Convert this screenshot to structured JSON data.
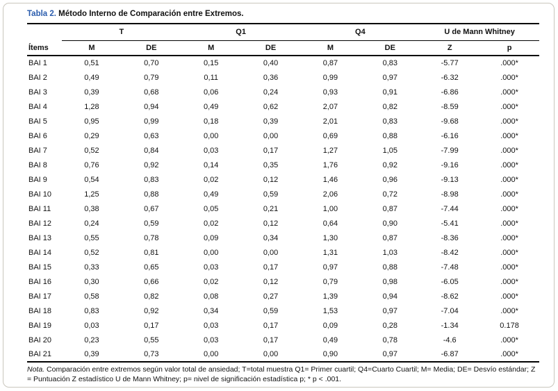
{
  "title": {
    "label": "Tabla 2.",
    "text": " Método Interno de Comparación entre Extremos."
  },
  "colors": {
    "title_accent": "#2a5cad",
    "card_border": "#c9c6bd",
    "rule": "#000000"
  },
  "table": {
    "row_header": "Ítems",
    "groups": [
      {
        "label": "T",
        "cols": [
          "M",
          "DE"
        ]
      },
      {
        "label": "Q1",
        "cols": [
          "M",
          "DE"
        ]
      },
      {
        "label": "Q4",
        "cols": [
          "M",
          "DE"
        ]
      },
      {
        "label": "U de Mann Whitney",
        "cols": [
          "Z",
          "p"
        ]
      }
    ],
    "rows": [
      {
        "item": "BAI 1",
        "values": [
          "0,51",
          "0,70",
          "0,15",
          "0,40",
          "0,87",
          "0,83",
          "-5.77",
          ".000*"
        ]
      },
      {
        "item": "BAI 2",
        "values": [
          "0,49",
          "0,79",
          "0,11",
          "0,36",
          "0,99",
          "0,97",
          "-6.32",
          ".000*"
        ]
      },
      {
        "item": "BAI 3",
        "values": [
          "0,39",
          "0,68",
          "0,06",
          "0,24",
          "0,93",
          "0,91",
          "-6.86",
          ".000*"
        ]
      },
      {
        "item": "BAI 4",
        "values": [
          "1,28",
          "0,94",
          "0,49",
          "0,62",
          "2,07",
          "0,82",
          "-8.59",
          ".000*"
        ]
      },
      {
        "item": "BAI 5",
        "values": [
          "0,95",
          "0,99",
          "0,18",
          "0,39",
          "2,01",
          "0,83",
          "-9.68",
          ".000*"
        ]
      },
      {
        "item": "BAI 6",
        "values": [
          "0,29",
          "0,63",
          "0,00",
          "0,00",
          "0,69",
          "0,88",
          "-6.16",
          ".000*"
        ]
      },
      {
        "item": "BAI 7",
        "values": [
          "0,52",
          "0,84",
          "0,03",
          "0,17",
          "1,27",
          "1,05",
          "-7.99",
          ".000*"
        ]
      },
      {
        "item": "BAI 8",
        "values": [
          "0,76",
          "0,92",
          "0,14",
          "0,35",
          "1,76",
          "0,92",
          "-9.16",
          ".000*"
        ]
      },
      {
        "item": "BAI 9",
        "values": [
          "0,54",
          "0,83",
          "0,02",
          "0,12",
          "1,46",
          "0,96",
          "-9.13",
          ".000*"
        ]
      },
      {
        "item": "BAI 10",
        "values": [
          "1,25",
          "0,88",
          "0,49",
          "0,59",
          "2,06",
          "0,72",
          "-8.98",
          ".000*"
        ]
      },
      {
        "item": "BAI 11",
        "values": [
          "0,38",
          "0,67",
          "0,05",
          "0,21",
          "1,00",
          "0,87",
          "-7.44",
          ".000*"
        ]
      },
      {
        "item": "BAI 12",
        "values": [
          "0,24",
          "0,59",
          "0,02",
          "0,12",
          "0,64",
          "0,90",
          "-5.41",
          ".000*"
        ]
      },
      {
        "item": "BAI 13",
        "values": [
          "0,55",
          "0,78",
          "0,09",
          "0,34",
          "1,30",
          "0,87",
          "-8.36",
          ".000*"
        ]
      },
      {
        "item": "BAI 14",
        "values": [
          "0,52",
          "0,81",
          "0,00",
          "0,00",
          "1,31",
          "1,03",
          "-8.42",
          ".000*"
        ]
      },
      {
        "item": "BAI 15",
        "values": [
          "0,33",
          "0,65",
          "0,03",
          "0,17",
          "0,97",
          "0,88",
          "-7.48",
          ".000*"
        ]
      },
      {
        "item": "BAI 16",
        "values": [
          "0,30",
          "0,66",
          "0,02",
          "0,12",
          "0,79",
          "0,98",
          "-6.05",
          ".000*"
        ]
      },
      {
        "item": "BAI 17",
        "values": [
          "0,58",
          "0,82",
          "0,08",
          "0,27",
          "1,39",
          "0,94",
          "-8.62",
          ".000*"
        ]
      },
      {
        "item": "BAI 18",
        "values": [
          "0,83",
          "0,92",
          "0,34",
          "0,59",
          "1,53",
          "0,97",
          "-7.04",
          ".000*"
        ]
      },
      {
        "item": "BAI 19",
        "values": [
          "0,03",
          "0,17",
          "0,03",
          "0,17",
          "0,09",
          "0,28",
          "-1.34",
          "0.178"
        ]
      },
      {
        "item": "BAI 20",
        "values": [
          "0,23",
          "0,55",
          "0,03",
          "0,17",
          "0,49",
          "0,78",
          "-4.6",
          ".000*"
        ]
      },
      {
        "item": "BAI 21",
        "values": [
          "0,39",
          "0,73",
          "0,00",
          "0,00",
          "0,90",
          "0,97",
          "-6.87",
          ".000*"
        ]
      }
    ]
  },
  "footnote": {
    "label": "Nota.",
    "text": " Comparación entre extremos según valor total de ansiedad; T=total muestra Q1= Primer cuartil; Q4=Cuarto Cuartil; M= Media; DE= Desvío estándar; Z = Puntuación Z estadístico U de Mann Whitney; p= nivel de significación estadística p; * p < .001."
  }
}
